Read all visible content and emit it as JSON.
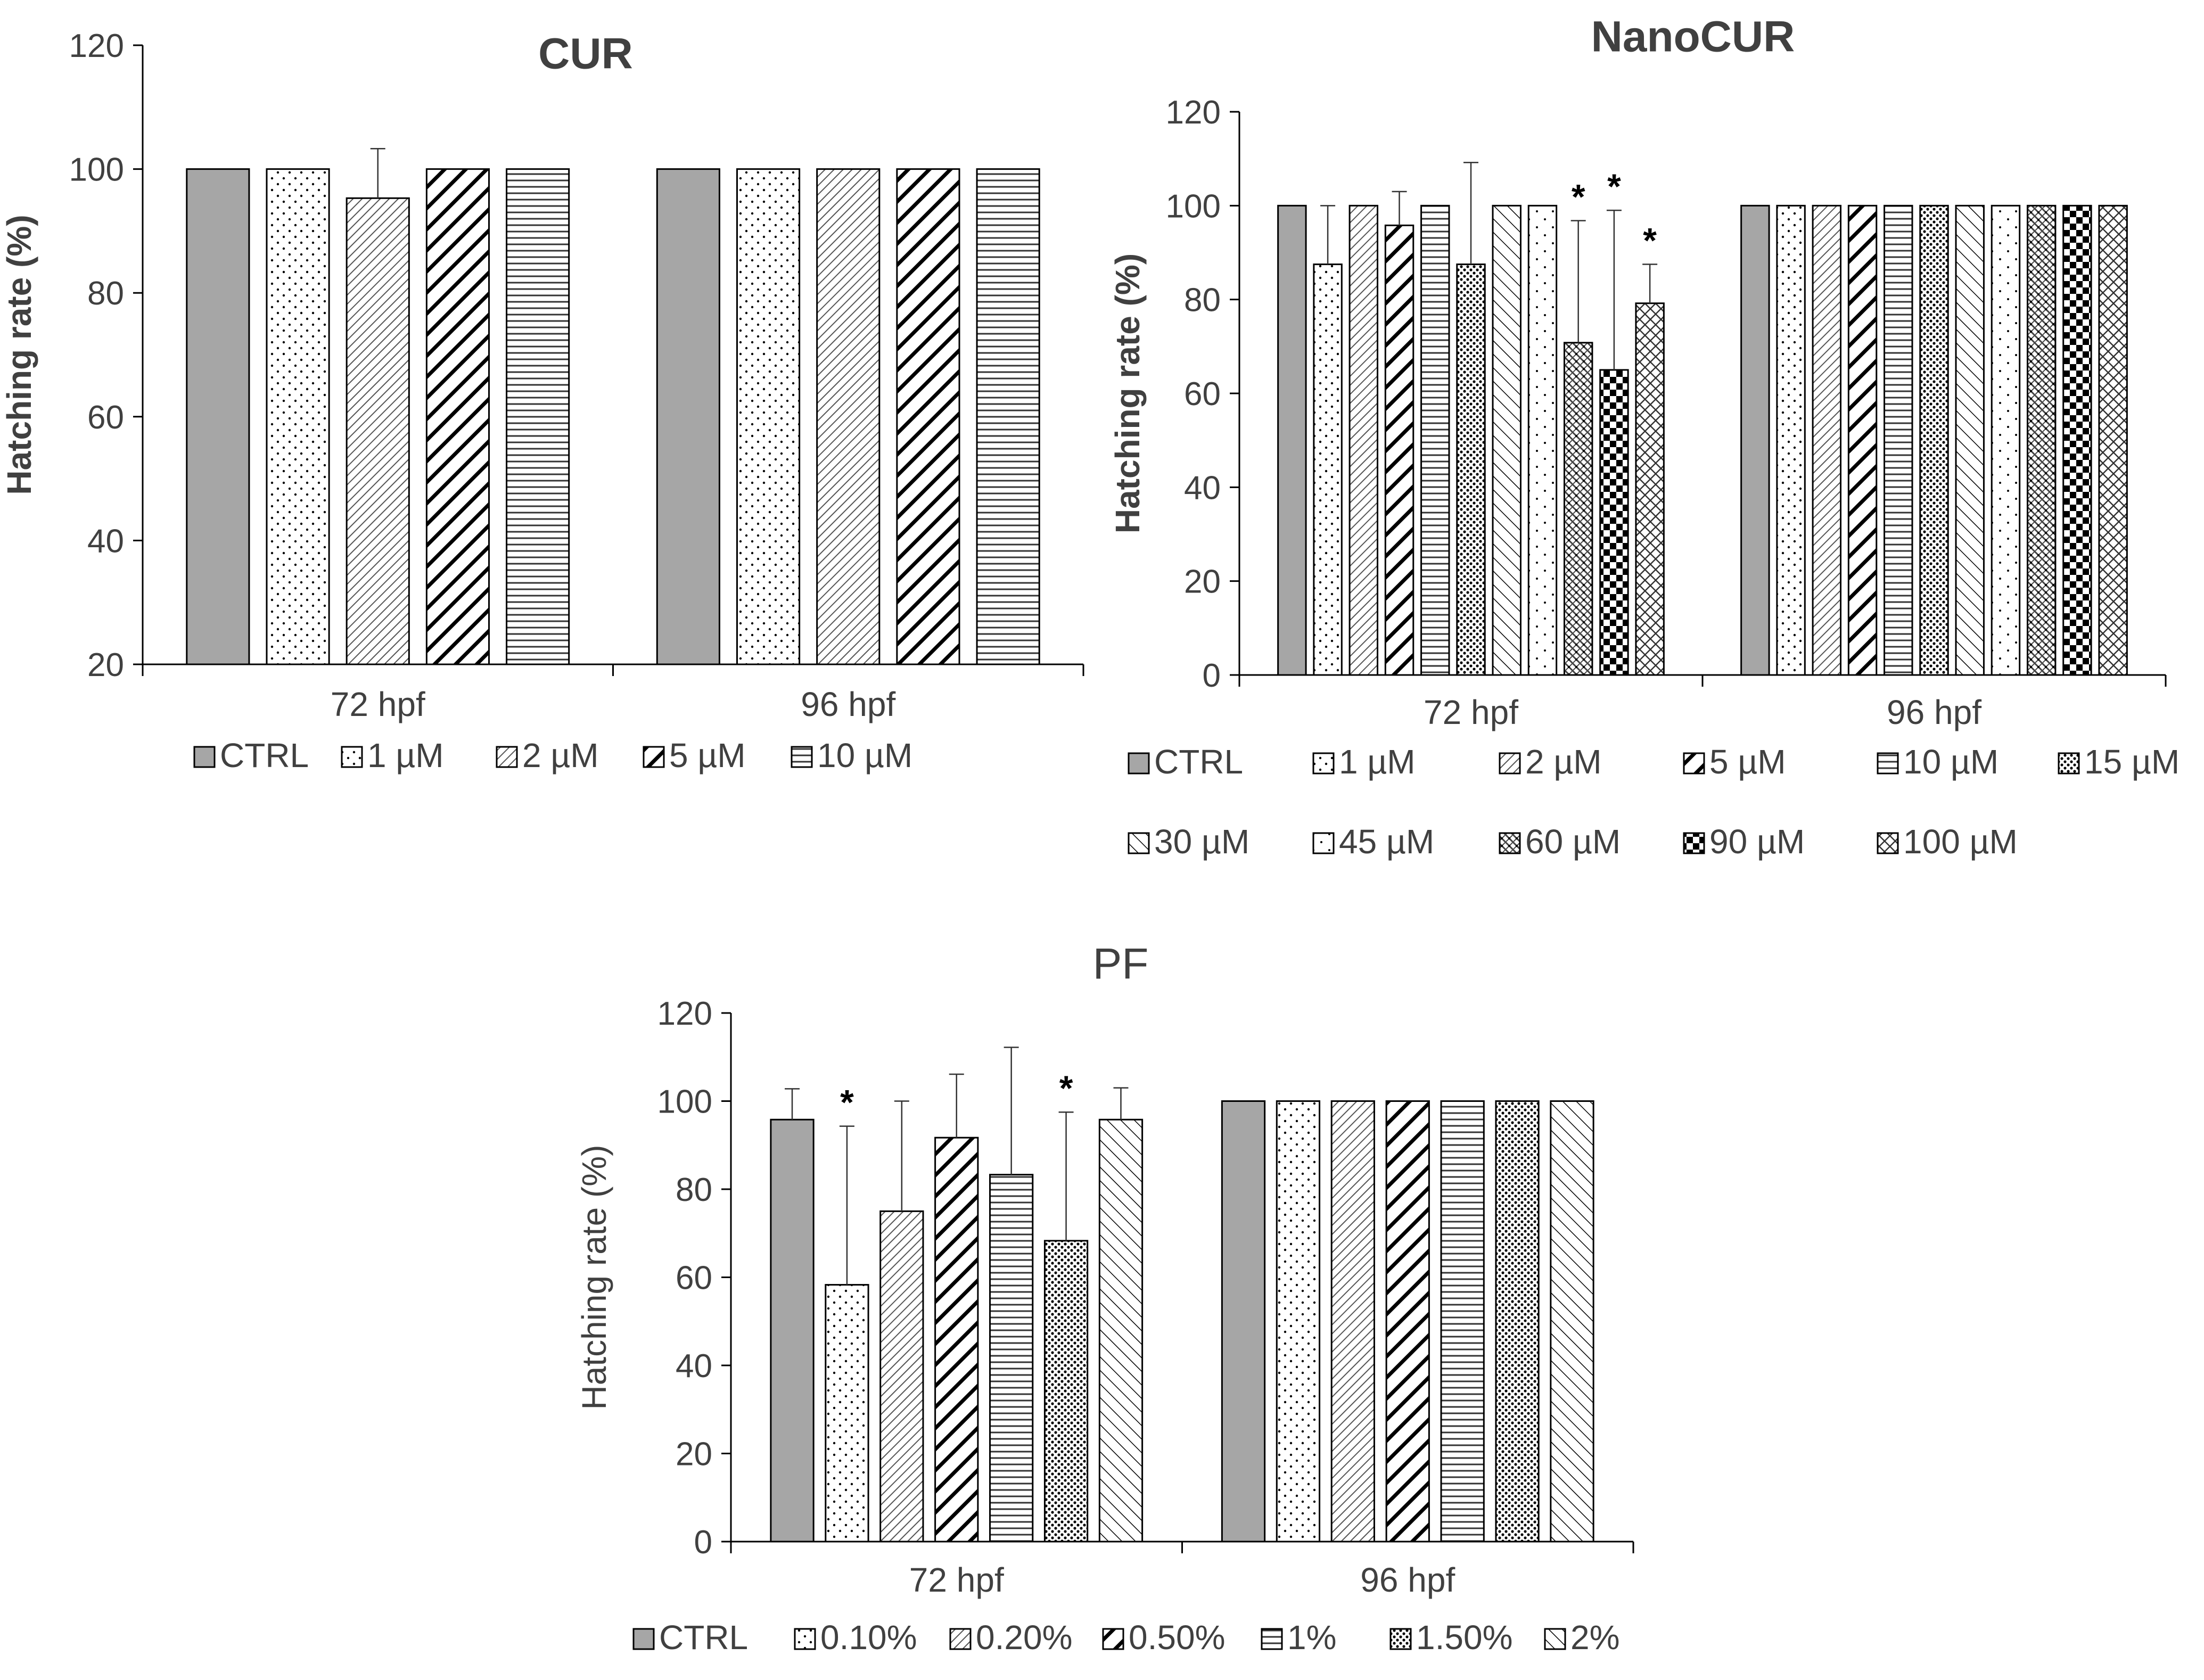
{
  "chart_data": [
    {
      "id": "cur",
      "type": "bar",
      "title": "CUR",
      "title_bold": true,
      "ylabel": "Hatching rate (%)",
      "ylabel_bold": true,
      "ylim": [
        20,
        120
      ],
      "yticks": [
        20,
        40,
        60,
        80,
        100,
        120
      ],
      "groups": [
        "72 hpf",
        "96 hpf"
      ],
      "series": [
        {
          "name": "CTRL",
          "pattern": "solid",
          "values": [
            100,
            100
          ],
          "errors": [
            0,
            0
          ],
          "sig": [
            false,
            false
          ]
        },
        {
          "name": "1 µM",
          "pattern": "dots",
          "values": [
            100,
            100
          ],
          "errors": [
            0,
            0
          ],
          "sig": [
            false,
            false
          ]
        },
        {
          "name": "2 µM",
          "pattern": "diag-thin",
          "values": [
            95.3,
            100
          ],
          "errors": [
            8.0,
            0
          ],
          "sig": [
            false,
            false
          ]
        },
        {
          "name": "5 µM",
          "pattern": "diag-thick",
          "values": [
            100,
            100
          ],
          "errors": [
            0,
            0
          ],
          "sig": [
            false,
            false
          ]
        },
        {
          "name": "10 µM",
          "pattern": "hlines",
          "values": [
            100,
            100
          ],
          "errors": [
            0,
            0
          ],
          "sig": [
            false,
            false
          ]
        }
      ]
    },
    {
      "id": "nanocur",
      "type": "bar",
      "title": "NanoCUR",
      "title_bold": true,
      "ylabel": "Hatching rate (%)",
      "ylabel_bold": true,
      "ylim": [
        0,
        120
      ],
      "yticks": [
        0,
        20,
        40,
        60,
        80,
        100,
        120
      ],
      "groups": [
        "72 hpf",
        "96 hpf"
      ],
      "series": [
        {
          "name": "CTRL",
          "pattern": "solid",
          "values": [
            100,
            100
          ],
          "errors": [
            0,
            0
          ],
          "sig": [
            false,
            false
          ]
        },
        {
          "name": "1 µM",
          "pattern": "dots",
          "values": [
            87.5,
            100
          ],
          "errors": [
            12.5,
            0
          ],
          "sig": [
            false,
            false
          ]
        },
        {
          "name": "2 µM",
          "pattern": "diag-thin",
          "values": [
            100,
            100
          ],
          "errors": [
            0,
            0
          ],
          "sig": [
            false,
            false
          ]
        },
        {
          "name": "5 µM",
          "pattern": "diag-thick",
          "values": [
            95.8,
            100
          ],
          "errors": [
            7.2,
            0
          ],
          "sig": [
            false,
            false
          ]
        },
        {
          "name": "10 µM",
          "pattern": "hlines",
          "values": [
            100,
            100
          ],
          "errors": [
            0,
            0
          ],
          "sig": [
            false,
            false
          ]
        },
        {
          "name": "15 µM",
          "pattern": "dense-dots",
          "values": [
            87.5,
            100
          ],
          "errors": [
            21.7,
            0
          ],
          "sig": [
            false,
            false
          ]
        },
        {
          "name": "30 µM",
          "pattern": "diag-rev",
          "values": [
            100,
            100
          ],
          "errors": [
            0,
            0
          ],
          "sig": [
            false,
            false
          ]
        },
        {
          "name": "45 µM",
          "pattern": "sparse-dots",
          "values": [
            100,
            100
          ],
          "errors": [
            0,
            0
          ],
          "sig": [
            false,
            false
          ]
        },
        {
          "name": "60 µM",
          "pattern": "weave",
          "values": [
            70.8,
            100
          ],
          "errors": [
            26.0,
            0
          ],
          "sig": [
            true,
            false
          ]
        },
        {
          "name": "90 µM",
          "pattern": "checker",
          "values": [
            65.0,
            100
          ],
          "errors": [
            34.0,
            0
          ],
          "sig": [
            true,
            false
          ]
        },
        {
          "name": "100 µM",
          "pattern": "cross",
          "values": [
            79.2,
            100
          ],
          "errors": [
            8.3,
            0
          ],
          "sig": [
            true,
            false
          ]
        }
      ]
    },
    {
      "id": "pf",
      "type": "bar",
      "title": "PF",
      "title_bold": false,
      "ylabel": "Hatching rate (%)",
      "ylabel_bold": false,
      "ylim": [
        0,
        120
      ],
      "yticks": [
        0,
        20,
        40,
        60,
        80,
        100,
        120
      ],
      "groups": [
        "72 hpf",
        "96 hpf"
      ],
      "series": [
        {
          "name": "CTRL",
          "pattern": "solid",
          "values": [
            95.8,
            100
          ],
          "errors": [
            7.0,
            0
          ],
          "sig": [
            false,
            false
          ]
        },
        {
          "name": "0.10%",
          "pattern": "dots",
          "values": [
            58.3,
            100
          ],
          "errors": [
            36.0,
            0
          ],
          "sig": [
            true,
            false
          ]
        },
        {
          "name": "0.20%",
          "pattern": "diag-thin",
          "values": [
            75.0,
            100
          ],
          "errors": [
            25.0,
            0
          ],
          "sig": [
            false,
            false
          ]
        },
        {
          "name": "0.50%",
          "pattern": "diag-thick",
          "values": [
            91.7,
            100
          ],
          "errors": [
            14.4,
            0
          ],
          "sig": [
            false,
            false
          ]
        },
        {
          "name": "1%",
          "pattern": "hlines",
          "values": [
            83.3,
            100
          ],
          "errors": [
            28.9,
            0
          ],
          "sig": [
            false,
            false
          ]
        },
        {
          "name": "1.50%",
          "pattern": "dense-dots",
          "values": [
            68.3,
            100
          ],
          "errors": [
            29.2,
            0
          ],
          "sig": [
            true,
            false
          ]
        },
        {
          "name": "2%",
          "pattern": "diag-rev",
          "values": [
            95.8,
            100
          ],
          "errors": [
            7.2,
            0
          ],
          "sig": [
            false,
            false
          ]
        }
      ]
    }
  ],
  "colors": {
    "ctrl_fill": "#a6a6a6",
    "bar_stroke": "#000000",
    "axis": "#000000",
    "text": "#404040",
    "title": "#404040",
    "background": "#ffffff"
  },
  "sig_marker": "*"
}
